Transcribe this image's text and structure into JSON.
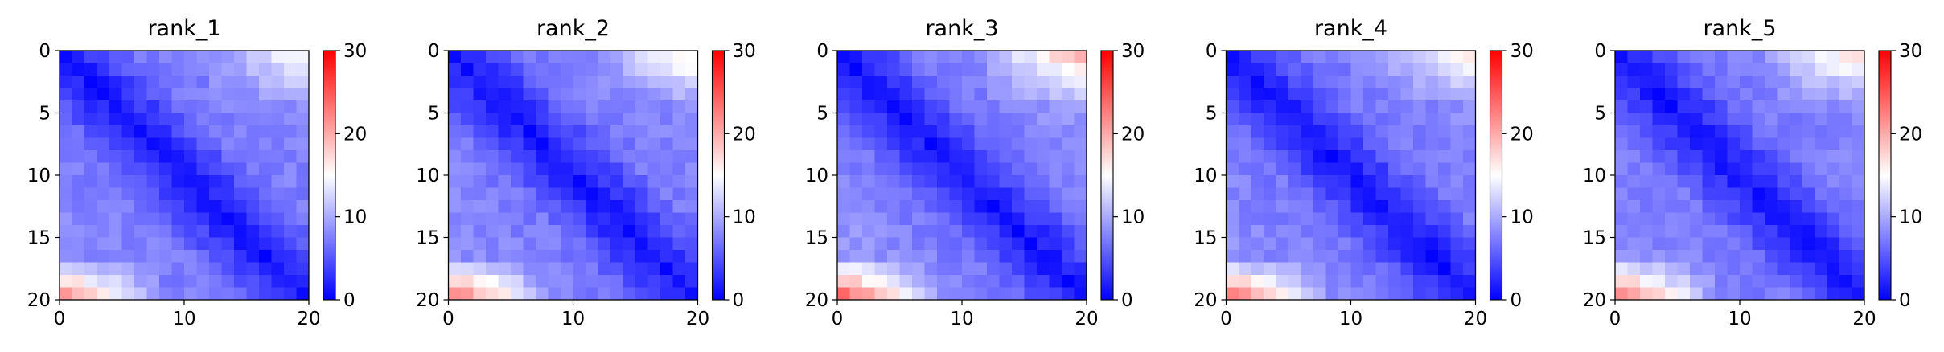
{
  "colorbar": {
    "min": 0,
    "max": 30,
    "ticks": [
      0,
      10,
      20,
      30
    ],
    "colormap": "bwr",
    "colors": {
      "low": "#0000ff",
      "mid": "#ffffff",
      "high": "#ff0000"
    }
  },
  "chart_data": [
    {
      "type": "heatmap",
      "title": "rank_1",
      "xlabel": "",
      "ylabel": "",
      "xlim": [
        0,
        20
      ],
      "ylim": [
        20,
        0
      ],
      "xticks": [
        0,
        10,
        20
      ],
      "yticks": [
        0,
        5,
        10,
        15,
        20
      ],
      "grid_size": 20,
      "diagonal": 1,
      "near_corner": 7,
      "far_corner": 9,
      "bottom_left_corner": 21,
      "top_right_corner": 15,
      "colorbar_range": [
        0,
        30
      ]
    },
    {
      "type": "heatmap",
      "title": "rank_2",
      "xlabel": "",
      "ylabel": "",
      "xlim": [
        0,
        20
      ],
      "ylim": [
        20,
        0
      ],
      "xticks": [
        0,
        10,
        20
      ],
      "yticks": [
        0,
        5,
        10,
        15,
        20
      ],
      "grid_size": 20,
      "diagonal": 1,
      "near_corner": 7,
      "far_corner": 9,
      "bottom_left_corner": 22,
      "top_right_corner": 16,
      "colorbar_range": [
        0,
        30
      ]
    },
    {
      "type": "heatmap",
      "title": "rank_3",
      "xlabel": "",
      "ylabel": "",
      "xlim": [
        0,
        20
      ],
      "ylim": [
        20,
        0
      ],
      "xticks": [
        0,
        10,
        20
      ],
      "yticks": [
        0,
        5,
        10,
        15,
        20
      ],
      "grid_size": 20,
      "diagonal": 1,
      "near_corner": 7,
      "far_corner": 10,
      "bottom_left_corner": 23,
      "top_right_corner": 19,
      "colorbar_range": [
        0,
        30
      ]
    },
    {
      "type": "heatmap",
      "title": "rank_4",
      "xlabel": "",
      "ylabel": "",
      "xlim": [
        0,
        20
      ],
      "ylim": [
        20,
        0
      ],
      "xticks": [
        0,
        10,
        20
      ],
      "yticks": [
        0,
        5,
        10,
        15,
        20
      ],
      "grid_size": 20,
      "diagonal": 1,
      "near_corner": 7,
      "far_corner": 9,
      "bottom_left_corner": 22,
      "top_right_corner": 16,
      "colorbar_range": [
        0,
        30
      ]
    },
    {
      "type": "heatmap",
      "title": "rank_5",
      "xlabel": "",
      "ylabel": "",
      "xlim": [
        0,
        20
      ],
      "ylim": [
        20,
        0
      ],
      "xticks": [
        0,
        10,
        20
      ],
      "yticks": [
        0,
        5,
        10,
        15,
        20
      ],
      "grid_size": 20,
      "diagonal": 1,
      "near_corner": 7,
      "far_corner": 9,
      "bottom_left_corner": 22,
      "top_right_corner": 17,
      "colorbar_range": [
        0,
        30
      ]
    }
  ]
}
